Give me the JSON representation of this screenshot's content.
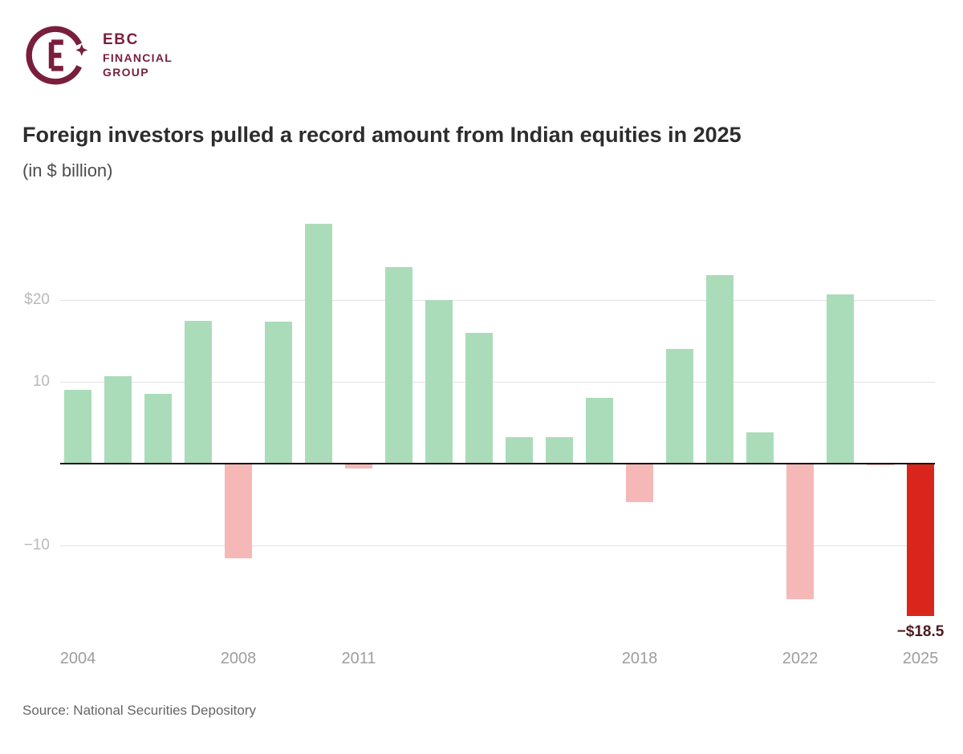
{
  "logo": {
    "line1": "EBC",
    "line2": "FINANCIAL",
    "line3": "GROUP",
    "brand_color": "#7a1e3d"
  },
  "header": {
    "title": "Foreign investors pulled a record amount from Indian equities in 2025",
    "subtitle": "(in $ billion)"
  },
  "footer": {
    "source": "Source: National Securities Depository"
  },
  "chart_data": {
    "type": "bar",
    "title": "Foreign investors pulled a record amount from Indian equities in 2025",
    "unit": "$ billion",
    "categories": [
      2004,
      2005,
      2006,
      2007,
      2008,
      2009,
      2010,
      2011,
      2012,
      2013,
      2014,
      2015,
      2016,
      2017,
      2018,
      2019,
      2020,
      2021,
      2022,
      2023,
      2024,
      2025
    ],
    "values": [
      9.0,
      10.7,
      8.5,
      17.5,
      -11.5,
      17.4,
      29.3,
      -0.5,
      24.0,
      20.0,
      16.0,
      3.2,
      3.2,
      8.0,
      -4.6,
      14.0,
      23.0,
      3.8,
      -16.5,
      20.7,
      -0.1,
      -18.5
    ],
    "highlight_year": 2025,
    "x_tick_years": [
      2004,
      2008,
      2011,
      2018,
      2022,
      2025
    ],
    "x_tick_labels": [
      "2004",
      "2008",
      "2011",
      "2018",
      "2022",
      "2025"
    ],
    "y_ticks": [
      {
        "value": 20,
        "label": "$20"
      },
      {
        "value": 10,
        "label": "10"
      },
      {
        "value": -10,
        "label": "−10"
      }
    ],
    "ylim": [
      -21,
      31
    ],
    "grid": "horizontal",
    "legend": "none",
    "annotation": {
      "year": 2025,
      "label": "−$18.5"
    },
    "colors": {
      "positive": "#abdcba",
      "negative": "#f5b8b6",
      "highlight": "#da251d",
      "annotation_text": "#4a1a1e",
      "axis_line": "#161616",
      "gridline": "#e2e2e2"
    }
  }
}
